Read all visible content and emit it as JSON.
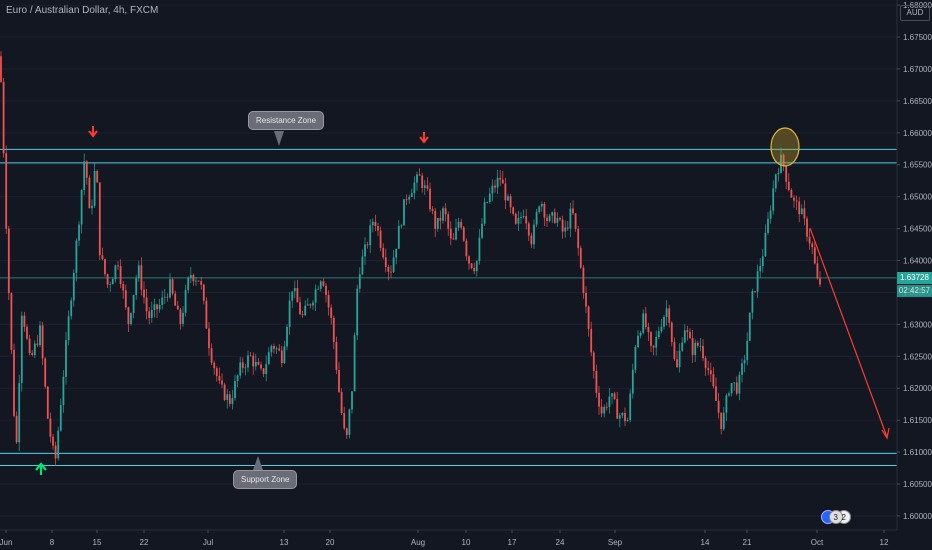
{
  "header": {
    "symbol_title": "Euro / Australian Dollar, 4h, FXCM",
    "currency_label": "AUD"
  },
  "annotations": {
    "resistance_label": "Resistance Zone",
    "support_label": "Support Zone"
  },
  "badges": [
    "3",
    "2"
  ],
  "price_tag": {
    "price": "1.63728",
    "countdown": "02:42:57",
    "price_color": "#26a69a",
    "countdown_color": "#26a69a"
  },
  "colors": {
    "background": "#131722",
    "up": "#26a69a",
    "down": "#ef5350",
    "zone_line": "#4dd0e1",
    "arrow_red": "#ff3b30",
    "arrow_green": "#00e676",
    "highlight": "#c9a227"
  },
  "chart_data": {
    "type": "candlestick",
    "title": "Euro / Australian Dollar, 4h, FXCM",
    "y_axis_ticks": [
      "1.68000",
      "1.67500",
      "1.67000",
      "1.66500",
      "1.66000",
      "1.65500",
      "1.65000",
      "1.64500",
      "1.64000",
      "1.63500",
      "1.63000",
      "1.62500",
      "1.62000",
      "1.61500",
      "1.61000",
      "1.60500",
      "1.60000"
    ],
    "x_axis_ticks": [
      "Jun",
      "8",
      "15",
      "22",
      "Jul",
      "13",
      "20",
      "Aug",
      "10",
      "17",
      "24",
      "Sep",
      "14",
      "21",
      "Oct",
      "12"
    ],
    "ylim": [
      1.5978,
      1.6808
    ],
    "zones": {
      "resistance": [
        1.6553,
        1.6574
      ],
      "support": [
        1.6079,
        1.6098
      ]
    },
    "last_price": 1.63728,
    "path_points": [
      [
        0,
        1.672
      ],
      [
        3,
        1.66
      ],
      [
        8,
        1.638
      ],
      [
        16,
        1.609
      ],
      [
        22,
        1.633
      ],
      [
        30,
        1.624
      ],
      [
        40,
        1.629
      ],
      [
        48,
        1.615
      ],
      [
        55,
        1.608
      ],
      [
        62,
        1.62
      ],
      [
        70,
        1.633
      ],
      [
        78,
        1.645
      ],
      [
        85,
        1.657
      ],
      [
        90,
        1.646
      ],
      [
        96,
        1.656
      ],
      [
        100,
        1.641
      ],
      [
        108,
        1.636
      ],
      [
        118,
        1.64
      ],
      [
        128,
        1.63
      ],
      [
        138,
        1.639
      ],
      [
        148,
        1.631
      ],
      [
        160,
        1.633
      ],
      [
        170,
        1.636
      ],
      [
        180,
        1.63
      ],
      [
        190,
        1.638
      ],
      [
        200,
        1.637
      ],
      [
        210,
        1.626
      ],
      [
        220,
        1.62
      ],
      [
        230,
        1.618
      ],
      [
        240,
        1.623
      ],
      [
        250,
        1.625
      ],
      [
        262,
        1.622
      ],
      [
        272,
        1.627
      ],
      [
        282,
        1.625
      ],
      [
        292,
        1.636
      ],
      [
        302,
        1.631
      ],
      [
        312,
        1.634
      ],
      [
        322,
        1.638
      ],
      [
        332,
        1.63
      ],
      [
        340,
        1.618
      ],
      [
        346,
        1.611
      ],
      [
        352,
        1.62
      ],
      [
        358,
        1.638
      ],
      [
        366,
        1.642
      ],
      [
        374,
        1.647
      ],
      [
        382,
        1.642
      ],
      [
        390,
        1.638
      ],
      [
        398,
        1.644
      ],
      [
        406,
        1.65
      ],
      [
        414,
        1.652
      ],
      [
        420,
        1.653
      ],
      [
        428,
        1.65
      ],
      [
        436,
        1.645
      ],
      [
        444,
        1.648
      ],
      [
        452,
        1.642
      ],
      [
        460,
        1.647
      ],
      [
        468,
        1.64
      ],
      [
        476,
        1.639
      ],
      [
        484,
        1.648
      ],
      [
        492,
        1.651
      ],
      [
        500,
        1.653
      ],
      [
        508,
        1.649
      ],
      [
        516,
        1.645
      ],
      [
        524,
        1.648
      ],
      [
        532,
        1.643
      ],
      [
        540,
        1.65
      ],
      [
        548,
        1.646
      ],
      [
        556,
        1.647
      ],
      [
        564,
        1.644
      ],
      [
        572,
        1.648
      ],
      [
        578,
        1.642
      ],
      [
        584,
        1.635
      ],
      [
        590,
        1.627
      ],
      [
        596,
        1.62
      ],
      [
        602,
        1.616
      ],
      [
        610,
        1.619
      ],
      [
        618,
        1.616
      ],
      [
        628,
        1.615
      ],
      [
        636,
        1.628
      ],
      [
        644,
        1.631
      ],
      [
        652,
        1.625
      ],
      [
        660,
        1.63
      ],
      [
        668,
        1.633
      ],
      [
        676,
        1.622
      ],
      [
        684,
        1.63
      ],
      [
        692,
        1.626
      ],
      [
        700,
        1.627
      ],
      [
        708,
        1.623
      ],
      [
        716,
        1.618
      ],
      [
        722,
        1.614
      ],
      [
        730,
        1.621
      ],
      [
        738,
        1.62
      ],
      [
        746,
        1.626
      ],
      [
        752,
        1.634
      ],
      [
        758,
        1.638
      ],
      [
        764,
        1.642
      ],
      [
        770,
        1.648
      ],
      [
        776,
        1.654
      ],
      [
        782,
        1.656
      ],
      [
        788,
        1.652
      ],
      [
        794,
        1.649
      ],
      [
        800,
        1.648
      ],
      [
        806,
        1.645
      ],
      [
        812,
        1.642
      ],
      [
        818,
        1.636
      ],
      [
        822,
        1.637
      ]
    ]
  }
}
